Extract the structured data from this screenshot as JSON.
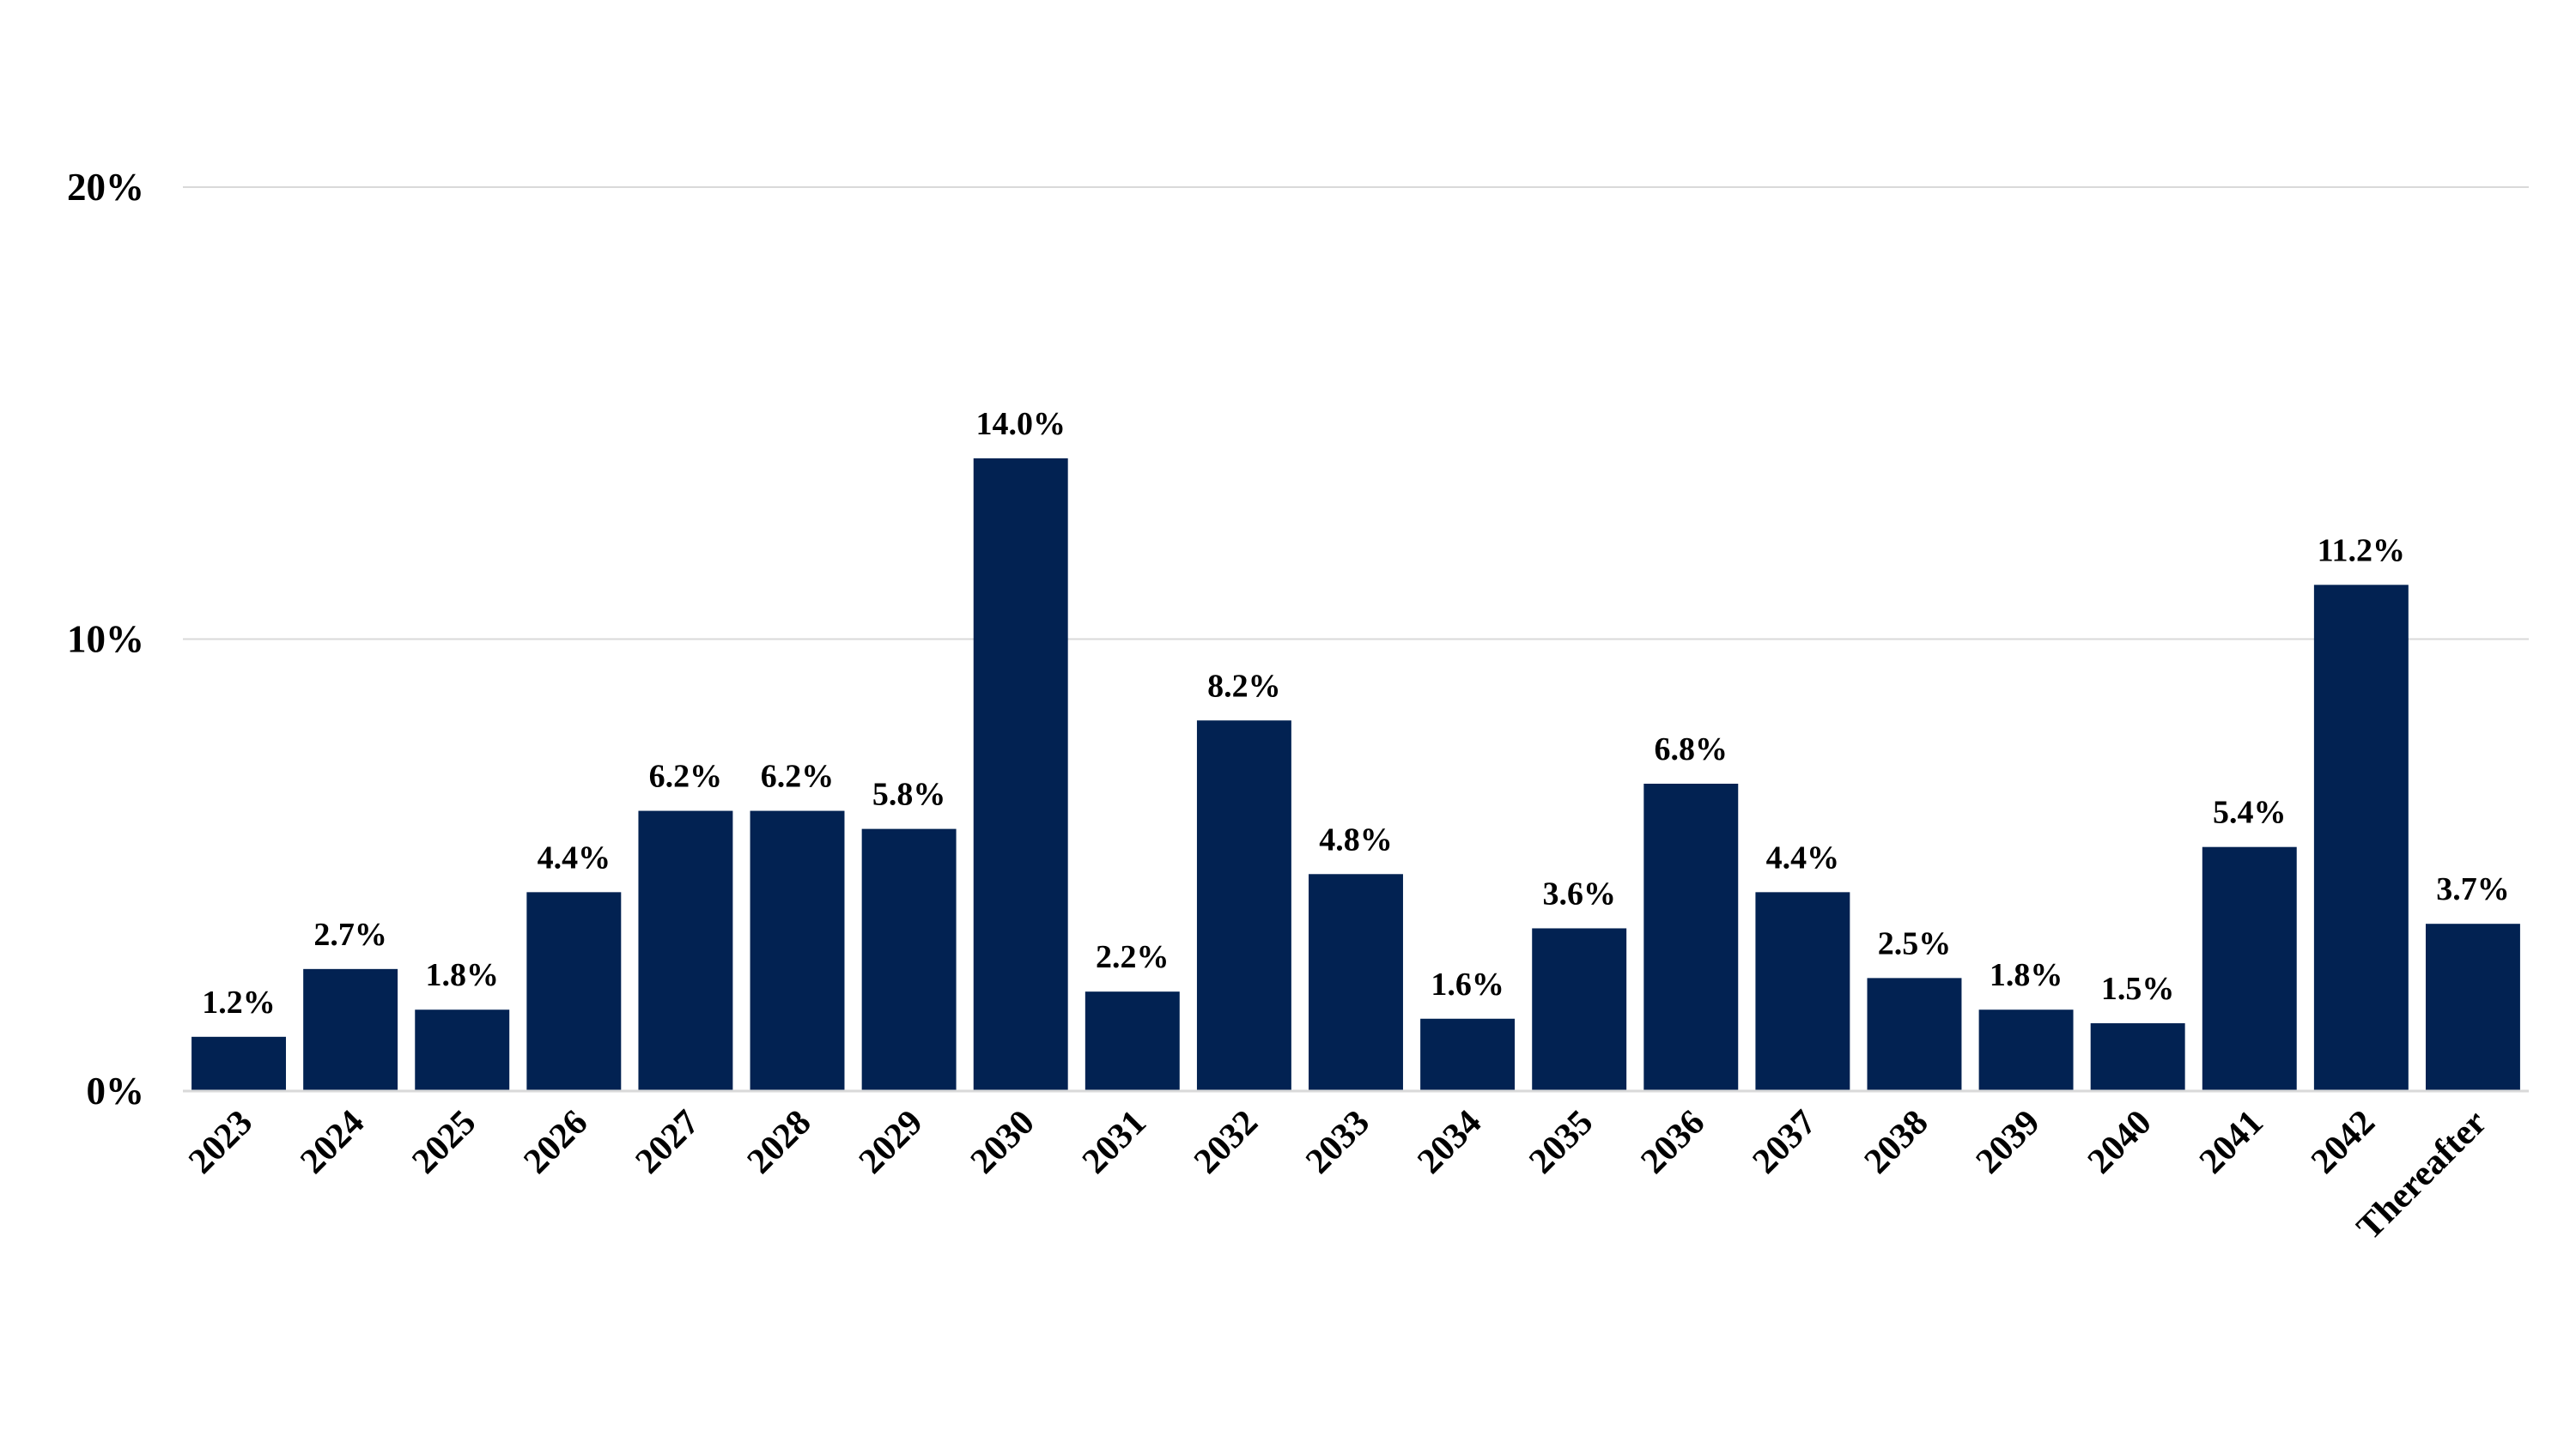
{
  "colors": {
    "bar": "#022252",
    "grid": "#d9d9d9",
    "text": "#000000",
    "background": "#ffffff"
  },
  "chart_data": {
    "type": "bar",
    "title": "",
    "xlabel": "",
    "ylabel": "",
    "ylim": [
      0,
      20
    ],
    "y_ticks": [
      0,
      10,
      20
    ],
    "y_tick_labels": [
      "0%",
      "10%",
      "20%"
    ],
    "grid": true,
    "legend": "none",
    "categories": [
      "2023",
      "2024",
      "2025",
      "2026",
      "2027",
      "2028",
      "2029",
      "2030",
      "2031",
      "2032",
      "2033",
      "2034",
      "2035",
      "2036",
      "2037",
      "2038",
      "2039",
      "2040",
      "2041",
      "2042",
      "Thereafter"
    ],
    "values": [
      1.2,
      2.7,
      1.8,
      4.4,
      6.2,
      6.2,
      5.8,
      14.0,
      2.2,
      8.2,
      4.8,
      1.6,
      3.6,
      6.8,
      4.4,
      2.5,
      1.8,
      1.5,
      5.4,
      11.2,
      3.7
    ],
    "data_labels": [
      "1.2%",
      "2.7%",
      "1.8%",
      "4.4%",
      "6.2%",
      "6.2%",
      "5.8%",
      "14.0%",
      "2.2%",
      "8.2%",
      "4.8%",
      "1.6%",
      "3.6%",
      "6.8%",
      "4.4%",
      "2.5%",
      "1.8%",
      "1.5%",
      "5.4%",
      "11.2%",
      "3.7%"
    ]
  }
}
